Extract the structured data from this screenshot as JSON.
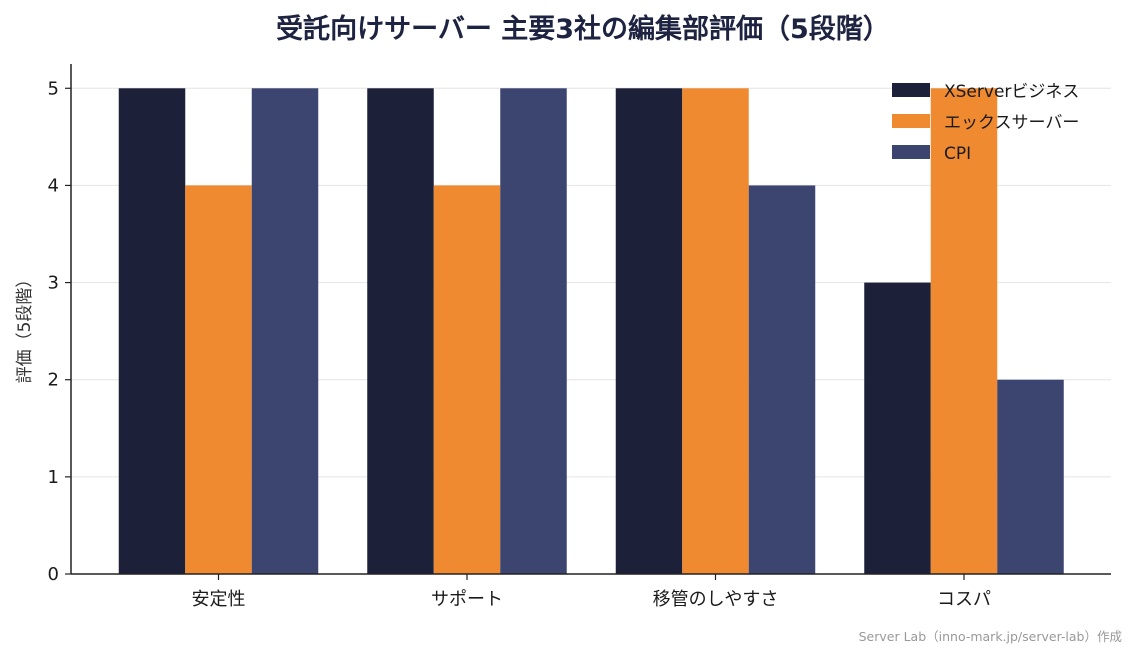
{
  "chart_data": {
    "type": "bar",
    "title": "受託向けサーバー 主要3社の編集部評価（5段階）",
    "xlabel": "",
    "ylabel": "評価（5段階）",
    "ylim": [
      0,
      5.25
    ],
    "yticks": [
      "0",
      "1",
      "2",
      "3",
      "4",
      "5"
    ],
    "categories": [
      "安定性",
      "サポート",
      "移管のしやすさ",
      "コスパ"
    ],
    "series": [
      {
        "name": "XServerビジネス",
        "values": [
          5,
          5,
          5,
          3
        ],
        "color": "#1d2039"
      },
      {
        "name": "エックスサーバー",
        "values": [
          4,
          4,
          5,
          5
        ],
        "color": "#ef8a30"
      },
      {
        "name": "CPI",
        "values": [
          5,
          5,
          4,
          2
        ],
        "color": "#3b4570"
      }
    ],
    "grid": "horizontal",
    "legend": "top-right",
    "credit": "Server Lab（inno-mark.jp/server-lab）作成"
  }
}
